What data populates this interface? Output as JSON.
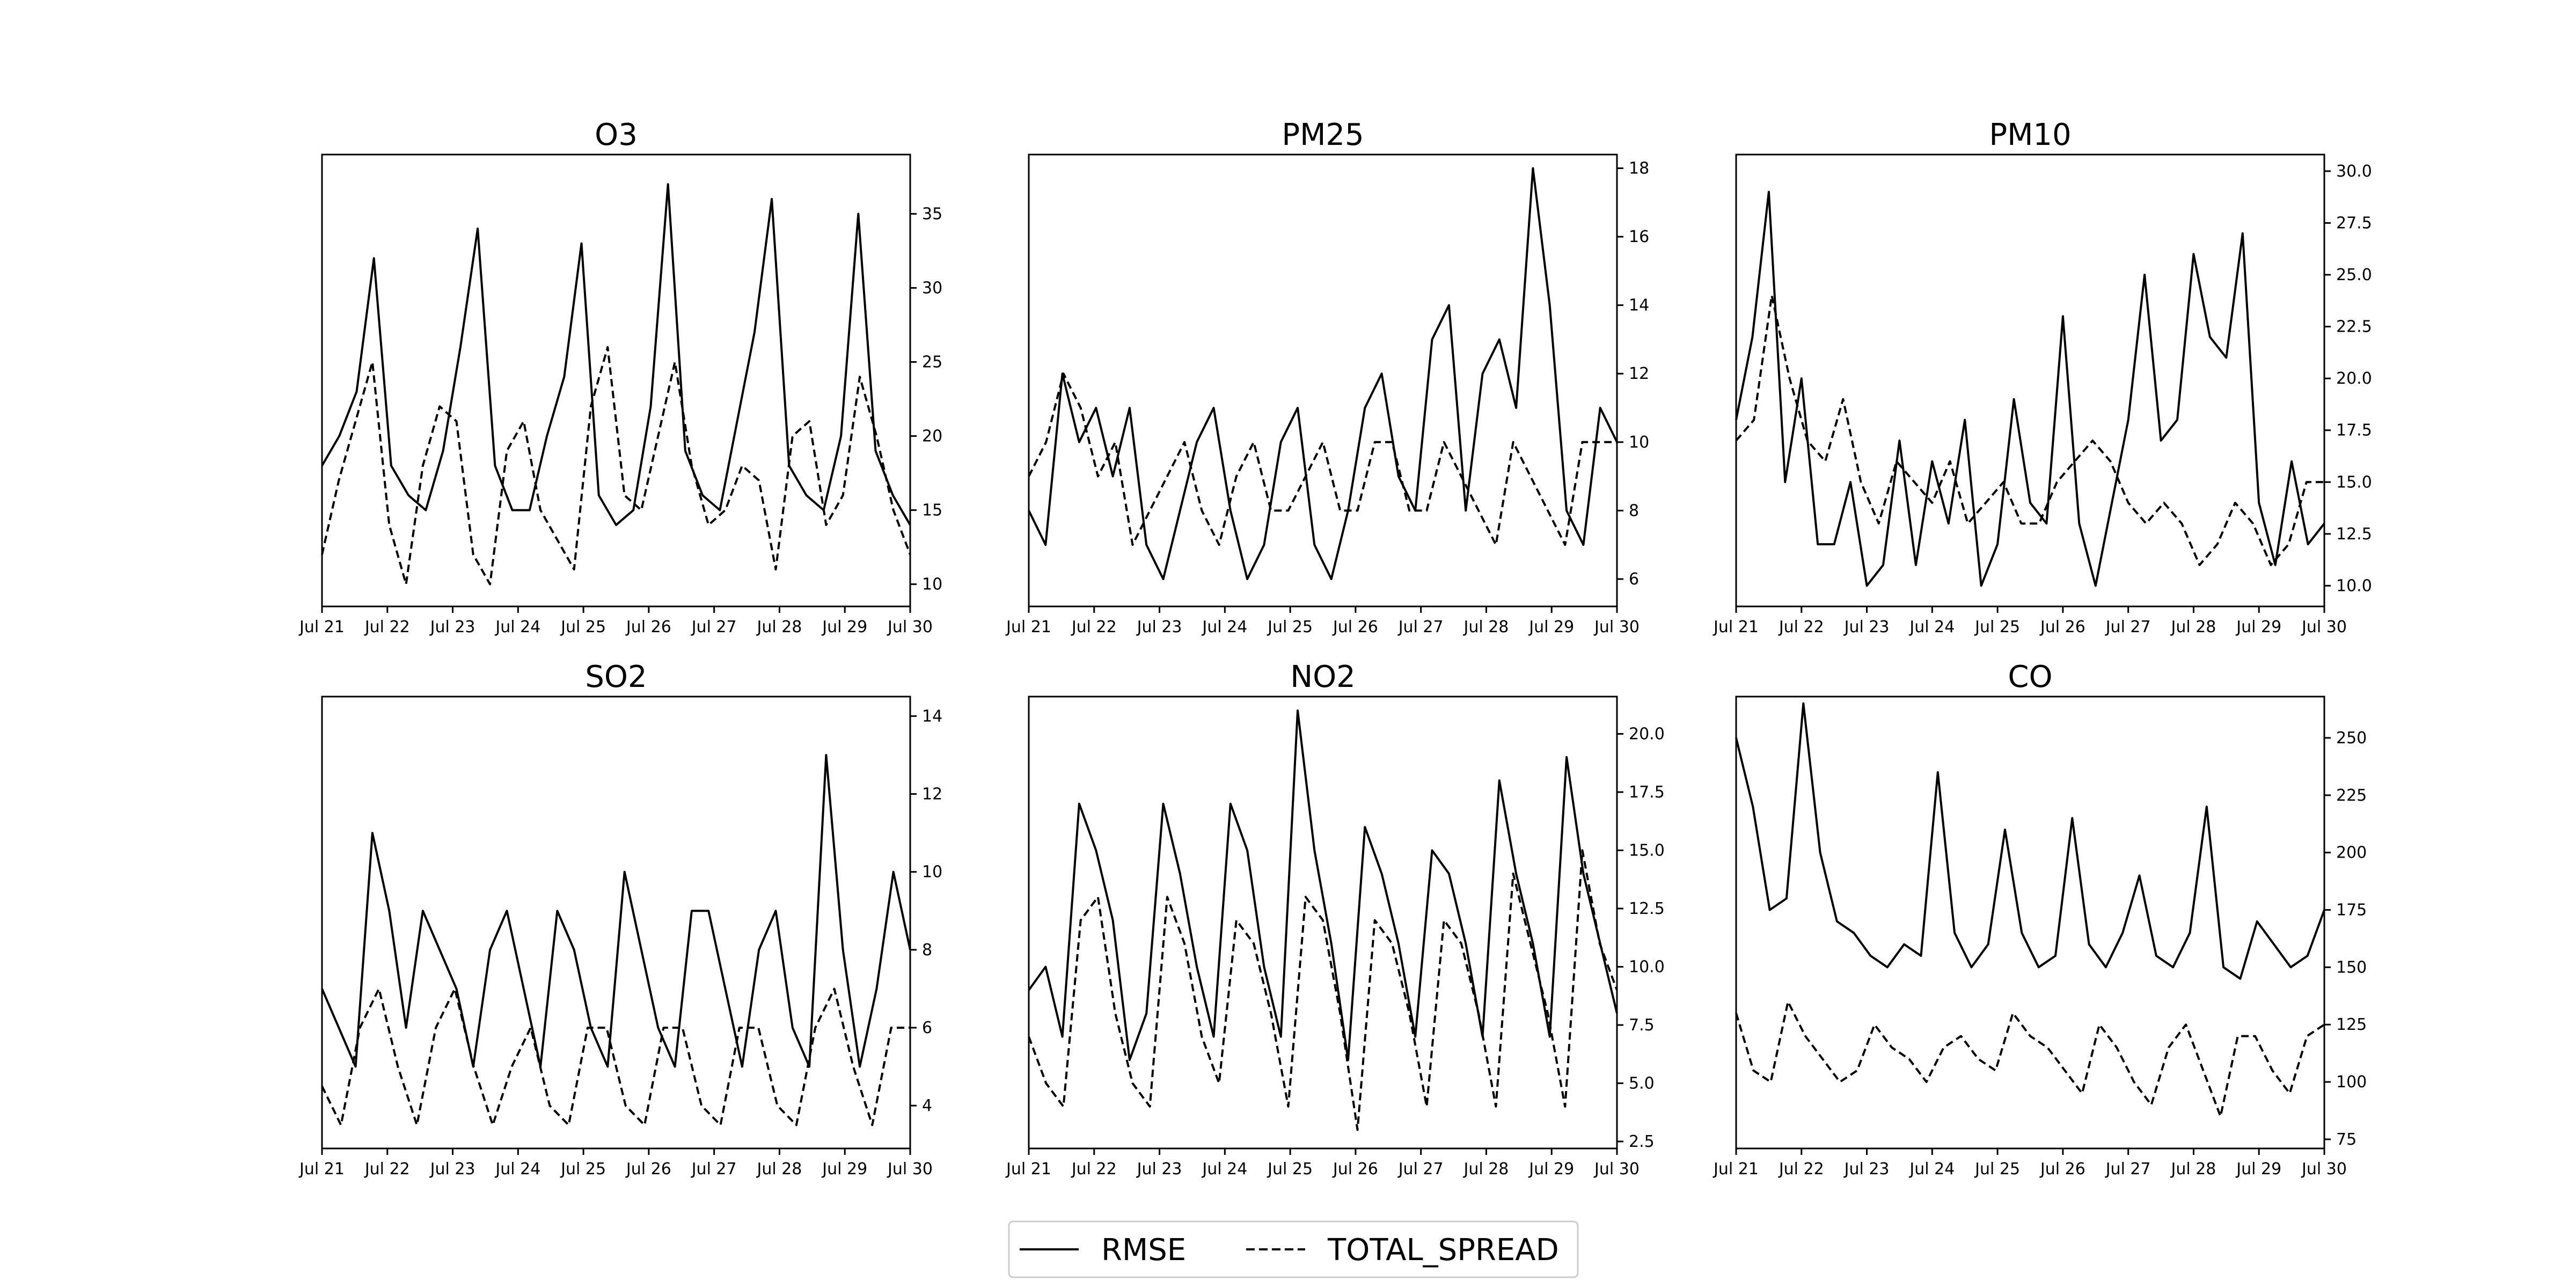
{
  "legend": {
    "placement": "bottom-center",
    "entries": [
      {
        "label": "RMSE",
        "style": "solid"
      },
      {
        "label": "TOTAL_SPREAD",
        "style": "dashed"
      }
    ]
  },
  "chart_data": [
    {
      "type": "line",
      "title": "O3",
      "xlabel": "",
      "ylabel": "",
      "x_tick_labels": [
        "Jul 21",
        "Jul 22",
        "Jul 23",
        "Jul 24",
        "Jul 25",
        "Jul 26",
        "Jul 27",
        "Jul 28",
        "Jul 29",
        "Jul 30"
      ],
      "x_start_date": "Jul 21",
      "x_step_hours": 6,
      "xlim_days": [
        0,
        9
      ],
      "ylim": [
        8.5,
        39
      ],
      "y_ticks": [
        10,
        15,
        20,
        25,
        30,
        35
      ],
      "y_axis": "right",
      "grid": false,
      "series": [
        {
          "name": "RMSE",
          "style": "solid",
          "values": [
            18,
            20,
            23,
            32,
            18,
            16,
            15,
            19,
            26,
            34,
            18,
            15,
            15,
            20,
            24,
            33,
            16,
            14,
            15,
            22,
            37,
            19,
            16,
            15,
            21,
            27,
            36,
            18,
            16,
            15,
            20,
            35,
            19,
            16,
            14
          ]
        },
        {
          "name": "TOTAL_SPREAD",
          "style": "dashed",
          "values": [
            12,
            17,
            21,
            25,
            14,
            10,
            18,
            22,
            21,
            12,
            10,
            19,
            21,
            15,
            13,
            11,
            22,
            26,
            16,
            15,
            20,
            25,
            18,
            14,
            15,
            18,
            17,
            11,
            20,
            21,
            14,
            16,
            24,
            20,
            15,
            12
          ]
        }
      ]
    },
    {
      "type": "line",
      "title": "PM25",
      "xlabel": "",
      "ylabel": "",
      "x_tick_labels": [
        "Jul 21",
        "Jul 22",
        "Jul 23",
        "Jul 24",
        "Jul 25",
        "Jul 26",
        "Jul 27",
        "Jul 28",
        "Jul 29",
        "Jul 30"
      ],
      "x_start_date": "Jul 21",
      "x_step_hours": 6,
      "xlim_days": [
        0,
        9
      ],
      "ylim": [
        5.2,
        18.4
      ],
      "y_ticks": [
        6,
        8,
        10,
        12,
        14,
        16,
        18
      ],
      "y_axis": "right",
      "grid": false,
      "series": [
        {
          "name": "RMSE",
          "style": "solid",
          "values": [
            8,
            7,
            12,
            10,
            11,
            9,
            11,
            7,
            6,
            8,
            10,
            11,
            8,
            6,
            7,
            10,
            11,
            7,
            6,
            8,
            11,
            12,
            9,
            8,
            13,
            14,
            8,
            12,
            13,
            11,
            18,
            14,
            8,
            7,
            11,
            10
          ]
        },
        {
          "name": "TOTAL_SPREAD",
          "style": "dashed",
          "values": [
            9,
            10,
            12,
            11,
            9,
            10,
            7,
            8,
            9,
            10,
            8,
            7,
            9,
            10,
            8,
            8,
            9,
            10,
            8,
            8,
            10,
            10,
            8,
            8,
            10,
            9,
            8,
            7,
            10,
            9,
            8,
            7,
            10,
            10,
            10
          ]
        }
      ]
    },
    {
      "type": "line",
      "title": "PM10",
      "xlabel": "",
      "ylabel": "",
      "x_tick_labels": [
        "Jul 21",
        "Jul 22",
        "Jul 23",
        "Jul 24",
        "Jul 25",
        "Jul 26",
        "Jul 27",
        "Jul 28",
        "Jul 29",
        "Jul 30"
      ],
      "x_start_date": "Jul 21",
      "x_step_hours": 6,
      "xlim_days": [
        0,
        9
      ],
      "ylim": [
        9,
        30.8
      ],
      "y_ticks": [
        10.0,
        12.5,
        15.0,
        17.5,
        20.0,
        22.5,
        25.0,
        27.5,
        30.0
      ],
      "y_axis": "right",
      "grid": false,
      "series": [
        {
          "name": "RMSE",
          "style": "solid",
          "values": [
            18,
            22,
            29,
            15,
            20,
            12,
            12,
            15,
            10,
            11,
            17,
            11,
            16,
            13,
            18,
            10,
            12,
            19,
            14,
            13,
            23,
            13,
            10,
            14,
            18,
            25,
            17,
            18,
            26,
            22,
            21,
            27,
            14,
            11,
            16,
            12,
            13
          ]
        },
        {
          "name": "TOTAL_SPREAD",
          "style": "dashed",
          "values": [
            17,
            18,
            24,
            20,
            17,
            16,
            19,
            15,
            13,
            16,
            15,
            14,
            16,
            13,
            14,
            15,
            13,
            13,
            15,
            16,
            17,
            16,
            14,
            13,
            14,
            13,
            11,
            12,
            14,
            13,
            11,
            12,
            15,
            15
          ]
        }
      ]
    },
    {
      "type": "line",
      "title": "SO2",
      "xlabel": "",
      "ylabel": "",
      "x_tick_labels": [
        "Jul 21",
        "Jul 22",
        "Jul 23",
        "Jul 24",
        "Jul 25",
        "Jul 26",
        "Jul 27",
        "Jul 28",
        "Jul 29",
        "Jul 30"
      ],
      "x_start_date": "Jul 21",
      "x_step_hours": 6,
      "xlim_days": [
        0,
        9
      ],
      "ylim": [
        2.9,
        14.5
      ],
      "y_ticks": [
        4,
        6,
        8,
        10,
        12,
        14
      ],
      "y_axis": "right",
      "grid": false,
      "series": [
        {
          "name": "RMSE",
          "style": "solid",
          "values": [
            7,
            6,
            5,
            11,
            9,
            6,
            9,
            8,
            7,
            5,
            8,
            9,
            7,
            5,
            9,
            8,
            6,
            5,
            10,
            8,
            6,
            5,
            9,
            9,
            7,
            5,
            8,
            9,
            6,
            5,
            13,
            8,
            5,
            7,
            10,
            8
          ]
        },
        {
          "name": "TOTAL_SPREAD",
          "style": "dashed",
          "values": [
            4.5,
            3.5,
            6,
            7,
            5,
            3.5,
            6,
            7,
            5,
            3.5,
            5,
            6,
            4,
            3.5,
            6,
            6,
            4,
            3.5,
            6,
            6,
            4,
            3.5,
            6,
            6,
            4,
            3.5,
            6,
            7,
            5,
            3.5,
            6,
            6
          ]
        }
      ]
    },
    {
      "type": "line",
      "title": "NO2",
      "xlabel": "",
      "ylabel": "",
      "x_tick_labels": [
        "Jul 21",
        "Jul 22",
        "Jul 23",
        "Jul 24",
        "Jul 25",
        "Jul 26",
        "Jul 27",
        "Jul 28",
        "Jul 29",
        "Jul 30"
      ],
      "x_start_date": "Jul 21",
      "x_step_hours": 6,
      "xlim_days": [
        0,
        9
      ],
      "ylim": [
        2.2,
        21.6
      ],
      "y_ticks": [
        2.5,
        5.0,
        7.5,
        10.0,
        12.5,
        15.0,
        17.5,
        20.0
      ],
      "y_axis": "right",
      "grid": false,
      "series": [
        {
          "name": "RMSE",
          "style": "solid",
          "values": [
            9,
            10,
            7,
            17,
            15,
            12,
            6,
            8,
            17,
            14,
            10,
            7,
            17,
            15,
            10,
            7,
            21,
            15,
            11,
            6,
            16,
            14,
            11,
            7,
            15,
            14,
            11,
            7,
            18,
            14,
            11,
            7,
            19,
            14,
            11,
            8
          ]
        },
        {
          "name": "TOTAL_SPREAD",
          "style": "dashed",
          "values": [
            7,
            5,
            4,
            12,
            13,
            8,
            5,
            4,
            13,
            11,
            7,
            5,
            12,
            11,
            8,
            4,
            13,
            12,
            8,
            3,
            12,
            11,
            8,
            4,
            12,
            11,
            8,
            4,
            14,
            11,
            8,
            4,
            15,
            11,
            9
          ]
        }
      ]
    },
    {
      "type": "line",
      "title": "CO",
      "xlabel": "",
      "ylabel": "",
      "x_tick_labels": [
        "Jul 21",
        "Jul 22",
        "Jul 23",
        "Jul 24",
        "Jul 25",
        "Jul 26",
        "Jul 27",
        "Jul 28",
        "Jul 29",
        "Jul 30"
      ],
      "x_start_date": "Jul 21",
      "x_step_hours": 6,
      "xlim_days": [
        0,
        9
      ],
      "ylim": [
        71,
        268
      ],
      "y_ticks": [
        75,
        100,
        125,
        150,
        175,
        200,
        225,
        250
      ],
      "y_axis": "right",
      "grid": false,
      "series": [
        {
          "name": "RMSE",
          "style": "solid",
          "values": [
            250,
            220,
            175,
            180,
            265,
            200,
            170,
            165,
            155,
            150,
            160,
            155,
            235,
            165,
            150,
            160,
            210,
            165,
            150,
            155,
            215,
            160,
            150,
            165,
            190,
            155,
            150,
            165,
            220,
            150,
            145,
            170,
            160,
            150,
            155,
            175
          ]
        },
        {
          "name": "TOTAL_SPREAD",
          "style": "dashed",
          "values": [
            130,
            105,
            100,
            135,
            120,
            110,
            100,
            105,
            125,
            115,
            110,
            100,
            115,
            120,
            110,
            105,
            130,
            120,
            115,
            105,
            95,
            125,
            115,
            100,
            90,
            115,
            125,
            105,
            85,
            120,
            120,
            105,
            95,
            120,
            125
          ]
        }
      ]
    }
  ]
}
